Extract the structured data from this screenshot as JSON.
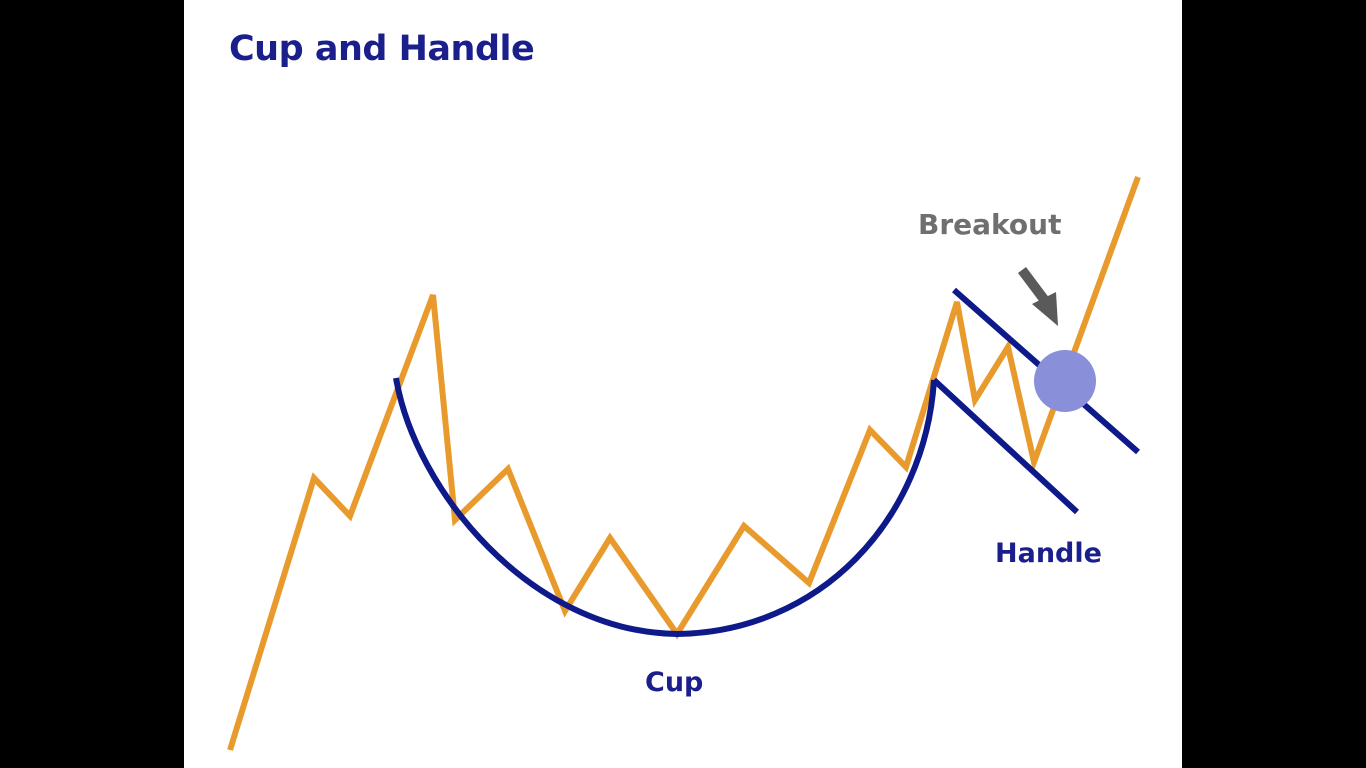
{
  "title": "Cup and Handle",
  "labels": {
    "cup": "Cup",
    "handle": "Handle",
    "breakout": "Breakout"
  },
  "colors": {
    "background": "#000000",
    "slide": "#ffffff",
    "price_line": "#e89b2c",
    "pattern_lines": "#0f1a8a",
    "title": "#1b1f8c",
    "breakout_text": "#6f6f6f",
    "arrow": "#5a5a5a",
    "breakout_point": "#8a8fd9"
  },
  "icons": {
    "arrow": "down-right-arrow-icon",
    "breakout_marker": "circle-marker-icon"
  }
}
